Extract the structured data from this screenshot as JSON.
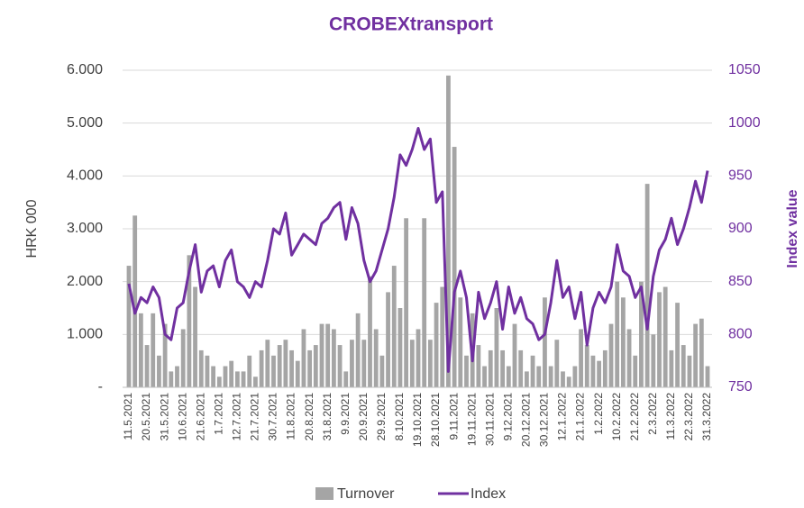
{
  "chart_data": {
    "type": "bar_line",
    "title": "CROBEXtransport",
    "y_label": "HRK 000",
    "y2_label": "Index value",
    "categories": [
      "11.5.2021",
      null,
      null,
      "20.5.2021",
      null,
      null,
      "31.5.2021",
      null,
      null,
      "10.6.2021",
      null,
      null,
      "21.6.2021",
      null,
      null,
      "1.7.2021",
      null,
      null,
      "12.7.2021",
      null,
      null,
      "21.7.2021",
      null,
      null,
      "30.7.2021",
      null,
      null,
      "11.8.2021",
      null,
      null,
      "20.8.2021",
      null,
      null,
      "31.8.2021",
      null,
      null,
      "9.9.2021",
      null,
      null,
      "20.9.2021",
      null,
      null,
      "29.9.2021",
      null,
      null,
      "8.10.2021",
      null,
      null,
      "19.10.2021",
      null,
      null,
      "28.10.2021",
      null,
      null,
      "9.11.2021",
      null,
      null,
      "19.11.2021",
      null,
      null,
      "30.11.2021",
      null,
      null,
      "9.12.2021",
      null,
      null,
      "20.12.2021",
      null,
      null,
      "30.12.2021",
      null,
      null,
      "12.1.2022",
      null,
      null,
      "21.1.2022",
      null,
      null,
      "1.2.2022",
      null,
      null,
      "10.2.2022",
      null,
      null,
      "21.2.2022",
      null,
      null,
      "2.3.2022",
      null,
      null,
      "11.3.2022",
      null,
      null,
      "22.3.2022",
      null,
      null,
      "31.3.2022"
    ],
    "series": [
      {
        "name": "Turnover",
        "color": "#a5a5a5",
        "axis": "y",
        "values": [
          2300,
          3250,
          1400,
          800,
          1400,
          600,
          1200,
          300,
          400,
          1100,
          2500,
          1900,
          700,
          600,
          400,
          200,
          400,
          500,
          300,
          300,
          600,
          200,
          700,
          900,
          600,
          800,
          900,
          700,
          500,
          1100,
          700,
          800,
          1200,
          1200,
          1100,
          800,
          300,
          900,
          1400,
          900,
          2100,
          1100,
          600,
          1800,
          2300,
          1500,
          3200,
          900,
          1100,
          3200,
          900,
          1600,
          1900,
          5900,
          4550,
          1700,
          600,
          1400,
          800,
          400,
          700,
          1500,
          700,
          400,
          1200,
          700,
          300,
          600,
          400,
          1700,
          400,
          900,
          300,
          200,
          400,
          1100,
          800,
          600,
          500,
          700,
          1200,
          2000,
          1700,
          1100,
          600,
          2000,
          3850,
          1000,
          1800,
          1900,
          700,
          1600,
          800,
          600,
          1200,
          1300,
          400
        ]
      },
      {
        "name": "Index",
        "color": "#7030a0",
        "axis": "y2",
        "values": [
          848,
          820,
          835,
          830,
          845,
          835,
          800,
          795,
          825,
          830,
          860,
          885,
          840,
          860,
          865,
          845,
          870,
          880,
          850,
          845,
          835,
          850,
          845,
          870,
          900,
          895,
          915,
          875,
          885,
          895,
          890,
          885,
          905,
          910,
          920,
          925,
          890,
          920,
          905,
          870,
          850,
          860,
          880,
          900,
          930,
          970,
          960,
          975,
          995,
          975,
          985,
          925,
          935,
          765,
          840,
          860,
          835,
          775,
          840,
          815,
          830,
          850,
          805,
          845,
          820,
          835,
          815,
          810,
          795,
          800,
          830,
          870,
          835,
          845,
          815,
          840,
          790,
          825,
          840,
          830,
          845,
          885,
          860,
          855,
          835,
          845,
          805,
          855,
          880,
          890,
          910,
          885,
          900,
          920,
          945,
          925,
          955
        ]
      }
    ],
    "ylim": [
      0,
      6000
    ],
    "yticks": [
      {
        "value": 0,
        "label": "-"
      },
      {
        "value": 1000,
        "label": "1.000"
      },
      {
        "value": 2000,
        "label": "2.000"
      },
      {
        "value": 3000,
        "label": "3.000"
      },
      {
        "value": 4000,
        "label": "4.000"
      },
      {
        "value": 5000,
        "label": "5.000"
      },
      {
        "value": 6000,
        "label": "6.000"
      }
    ],
    "y2lim": [
      750,
      1050
    ],
    "y2ticks": [
      750,
      800,
      850,
      900,
      950,
      1000,
      1050
    ],
    "grid": true,
    "legend": "bottom"
  }
}
